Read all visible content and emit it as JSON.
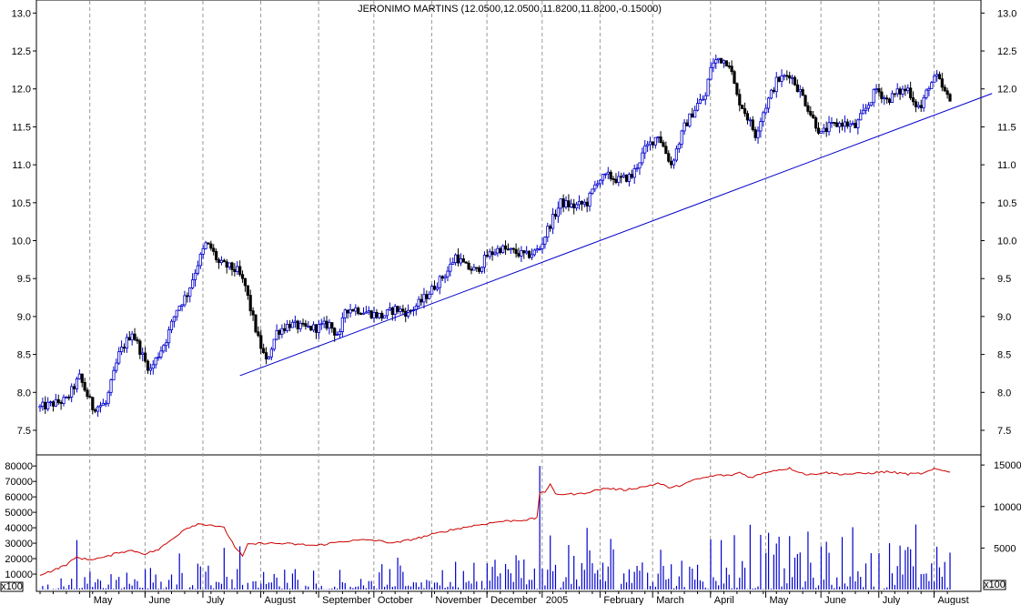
{
  "chart_data": [
    {
      "type": "candlestick",
      "title": "JERONIMO MARTINS (12.0500,12.0500,11.8200,11.8200,-0.15000)",
      "ylim": [
        7.2,
        13.1
      ],
      "yticks": [
        "7.5",
        "8.0",
        "8.5",
        "9.0",
        "9.5",
        "10.0",
        "10.5",
        "11.0",
        "11.5",
        "12.0",
        "12.5",
        "13.0"
      ],
      "x_months": [
        "May",
        "June",
        "July",
        "August",
        "September",
        "October",
        "November",
        "December",
        "2005",
        "February",
        "March",
        "April",
        "May",
        "June",
        "July",
        "August"
      ],
      "month_day_index": [
        21,
        42,
        64,
        86,
        108,
        129,
        151,
        172,
        193,
        215,
        235,
        257,
        278,
        299,
        321,
        342
      ],
      "close_series_anchors": [
        [
          0,
          7.8
        ],
        [
          5,
          7.85
        ],
        [
          10,
          7.9
        ],
        [
          15,
          8.2
        ],
        [
          20,
          7.8
        ],
        [
          25,
          7.85
        ],
        [
          30,
          8.5
        ],
        [
          35,
          8.8
        ],
        [
          40,
          8.4
        ],
        [
          42,
          8.3
        ],
        [
          48,
          8.7
        ],
        [
          52,
          9.1
        ],
        [
          56,
          9.3
        ],
        [
          60,
          9.7
        ],
        [
          63,
          9.95
        ],
        [
          65,
          9.9
        ],
        [
          68,
          9.7
        ],
        [
          72,
          9.65
        ],
        [
          75,
          9.6
        ],
        [
          78,
          9.4
        ],
        [
          80,
          9.1
        ],
        [
          83,
          8.7
        ],
        [
          86,
          8.4
        ],
        [
          90,
          8.8
        ],
        [
          95,
          8.9
        ],
        [
          100,
          8.85
        ],
        [
          105,
          8.85
        ],
        [
          110,
          8.9
        ],
        [
          112,
          8.8
        ],
        [
          114,
          8.75
        ],
        [
          116,
          9.1
        ],
        [
          120,
          9.1
        ],
        [
          125,
          9.05
        ],
        [
          130,
          9.0
        ],
        [
          135,
          9.1
        ],
        [
          140,
          9.05
        ],
        [
          145,
          9.2
        ],
        [
          150,
          9.4
        ],
        [
          155,
          9.6
        ],
        [
          158,
          9.8
        ],
        [
          162,
          9.65
        ],
        [
          166,
          9.6
        ],
        [
          170,
          9.8
        ],
        [
          175,
          9.9
        ],
        [
          180,
          9.85
        ],
        [
          185,
          9.8
        ],
        [
          188,
          9.85
        ],
        [
          190,
          9.9
        ],
        [
          193,
          10.15
        ],
        [
          198,
          10.5
        ],
        [
          203,
          10.45
        ],
        [
          208,
          10.5
        ],
        [
          212,
          10.8
        ],
        [
          216,
          10.85
        ],
        [
          220,
          10.8
        ],
        [
          225,
          10.85
        ],
        [
          230,
          11.2
        ],
        [
          235,
          11.4
        ],
        [
          240,
          11.0
        ],
        [
          245,
          11.5
        ],
        [
          250,
          11.8
        ],
        [
          253,
          11.9
        ],
        [
          255,
          12.3
        ],
        [
          258,
          12.4
        ],
        [
          262,
          12.35
        ],
        [
          265,
          11.9
        ],
        [
          268,
          11.7
        ],
        [
          272,
          11.4
        ],
        [
          275,
          11.7
        ],
        [
          280,
          12.1
        ],
        [
          285,
          12.2
        ],
        [
          290,
          11.9
        ],
        [
          294,
          11.6
        ],
        [
          297,
          11.4
        ],
        [
          300,
          11.5
        ],
        [
          305,
          11.55
        ],
        [
          310,
          11.5
        ],
        [
          315,
          11.8
        ],
        [
          318,
          12.0
        ],
        [
          322,
          11.85
        ],
        [
          326,
          11.95
        ],
        [
          330,
          12.0
        ],
        [
          333,
          11.8
        ],
        [
          335,
          11.75
        ],
        [
          338,
          12.05
        ],
        [
          341,
          12.15
        ],
        [
          344,
          11.95
        ],
        [
          346,
          11.82
        ]
      ],
      "trendline": {
        "start": [
          76,
          8.22
        ],
        "end": [
          362,
          11.94
        ],
        "color": "#0000cc"
      },
      "colors": {
        "up": "#0000cc",
        "down": "#000000",
        "grid": "#999999"
      }
    },
    {
      "type": "bar",
      "name": "volume",
      "unit_label": "x100",
      "ylim_left": [
        0,
        86000
      ],
      "yticks_left": [
        "10000",
        "20000",
        "30000",
        "40000",
        "50000",
        "60000",
        "70000",
        "80000"
      ],
      "ylim_right": [
        0,
        16000
      ],
      "yticks_right": [
        "5000",
        "10000",
        "15000"
      ],
      "spike_points": [
        [
          14,
          32000
        ],
        [
          70,
          27000
        ],
        [
          76,
          28000
        ],
        [
          190,
          80000
        ],
        [
          194,
          35000
        ],
        [
          259,
          32000
        ],
        [
          297,
          28000
        ],
        [
          323,
          30000
        ]
      ],
      "moving_average_anchors": [
        [
          0,
          1800
        ],
        [
          5,
          2300
        ],
        [
          10,
          3000
        ],
        [
          14,
          3900
        ],
        [
          18,
          3600
        ],
        [
          25,
          3900
        ],
        [
          30,
          4500
        ],
        [
          35,
          4700
        ],
        [
          40,
          4300
        ],
        [
          45,
          4800
        ],
        [
          50,
          6000
        ],
        [
          55,
          7300
        ],
        [
          60,
          7900
        ],
        [
          65,
          7800
        ],
        [
          70,
          7400
        ],
        [
          74,
          5200
        ],
        [
          77,
          4000
        ],
        [
          79,
          5400
        ],
        [
          85,
          5600
        ],
        [
          95,
          5500
        ],
        [
          105,
          5300
        ],
        [
          115,
          5800
        ],
        [
          125,
          6000
        ],
        [
          135,
          5600
        ],
        [
          145,
          6300
        ],
        [
          155,
          7100
        ],
        [
          165,
          7700
        ],
        [
          175,
          8200
        ],
        [
          185,
          8400
        ],
        [
          189,
          8600
        ],
        [
          190,
          11700
        ],
        [
          192,
          11800
        ],
        [
          194,
          12600
        ],
        [
          196,
          11500
        ],
        [
          205,
          11500
        ],
        [
          215,
          12200
        ],
        [
          222,
          12000
        ],
        [
          230,
          12400
        ],
        [
          235,
          12800
        ],
        [
          240,
          12200
        ],
        [
          250,
          13300
        ],
        [
          258,
          13800
        ],
        [
          262,
          13700
        ],
        [
          266,
          14100
        ],
        [
          270,
          13500
        ],
        [
          278,
          14300
        ],
        [
          285,
          14600
        ],
        [
          292,
          13800
        ],
        [
          298,
          14100
        ],
        [
          305,
          13900
        ],
        [
          315,
          14000
        ],
        [
          322,
          14200
        ],
        [
          330,
          13900
        ],
        [
          336,
          14000
        ],
        [
          340,
          14500
        ],
        [
          346,
          14200
        ]
      ],
      "colors": {
        "bar": "#0000cc",
        "ma": "#cc0000"
      }
    }
  ]
}
